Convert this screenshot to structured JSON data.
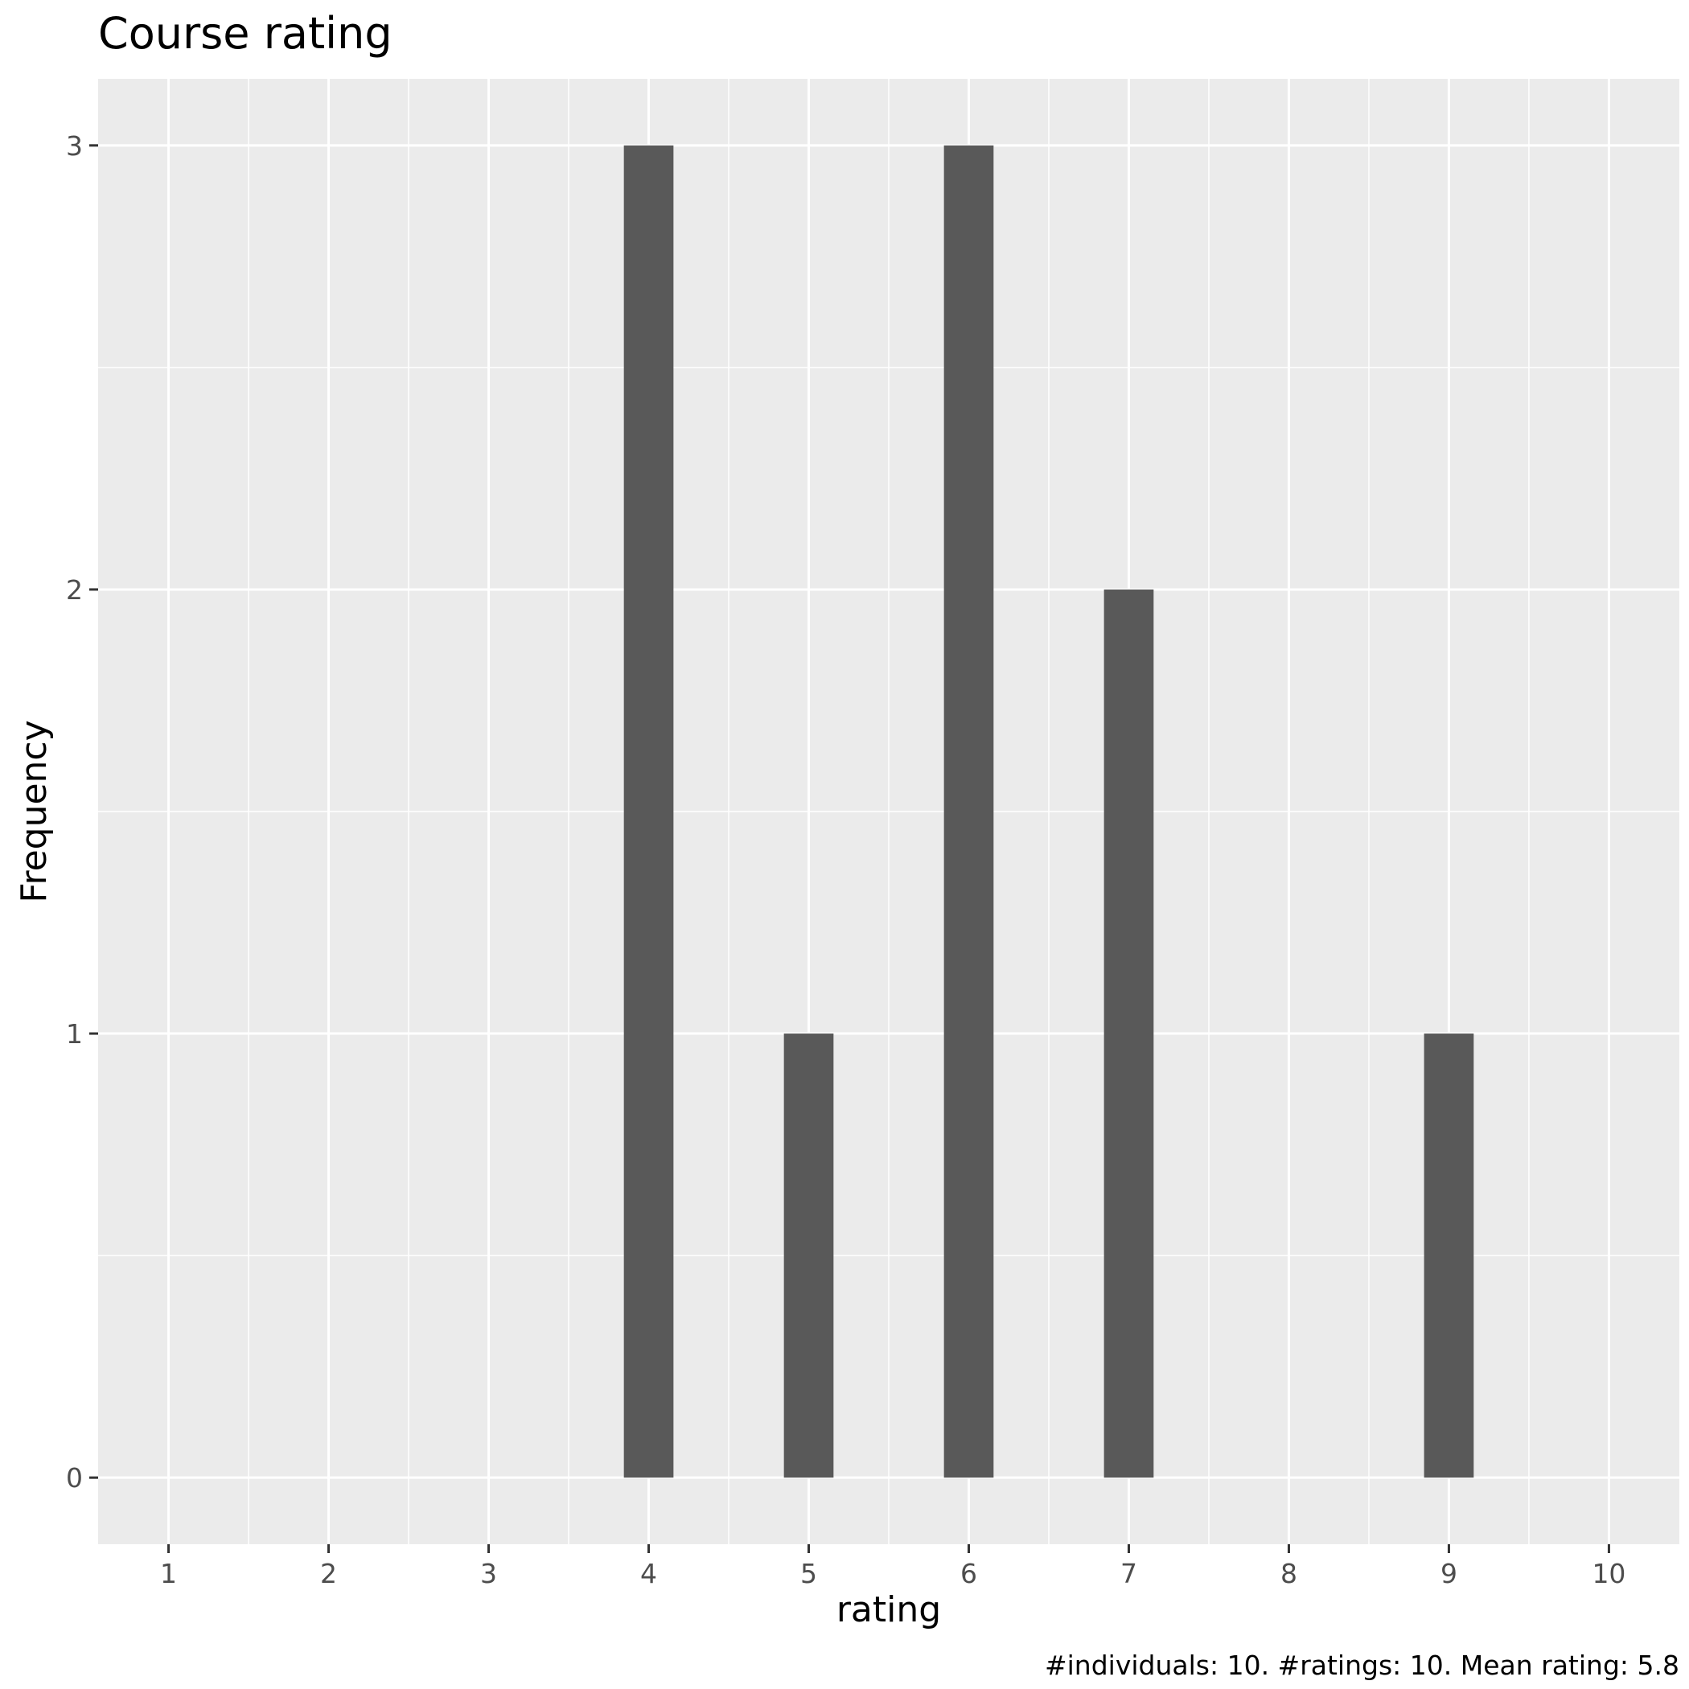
{
  "chart_data": {
    "type": "bar",
    "title": "Course rating",
    "xlabel": "rating",
    "ylabel": "Frequency",
    "caption": "#individuals: 10. #ratings: 10. Mean rating: 5.8",
    "x_ticks": [
      1,
      2,
      3,
      4,
      5,
      6,
      7,
      8,
      9,
      10
    ],
    "y_ticks": [
      0,
      1,
      2,
      3
    ],
    "xlim": [
      0.56,
      10.44
    ],
    "ylim": [
      -0.15,
      3.15
    ],
    "x": [
      4,
      5,
      6,
      7,
      9
    ],
    "values": [
      3,
      1,
      3,
      2,
      1
    ],
    "bar_color": "#595959",
    "panel_color": "#ebebeb",
    "grid": true,
    "legend": "none"
  }
}
